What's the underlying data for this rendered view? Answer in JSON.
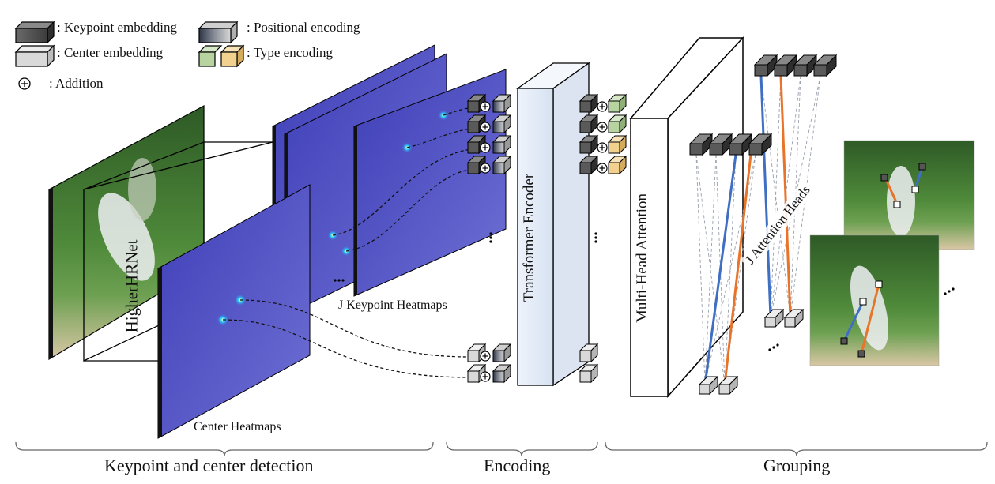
{
  "legend": {
    "keypoint_embedding": ": Keypoint embedding",
    "positional_encoding": ": Positional encoding",
    "center_embedding": ": Center embedding",
    "type_encoding": ": Type encoding",
    "addition": ": Addition"
  },
  "labels": {
    "backbone": "HigherHRNet",
    "keypoint_heatmaps": "J Keypoint Heatmaps",
    "center_heatmaps": "Center Heatmaps",
    "transformer_encoder": "Transformer Encoder",
    "multi_head_attention": "Multi-Head Attention",
    "attention_heads": "J Attention Heads",
    "ellipsis": "..."
  },
  "sections": {
    "detection": "Keypoint and center detection",
    "encoding": "Encoding",
    "grouping": "Grouping"
  },
  "colors": {
    "keypoint_embedding": "#5a5a5a",
    "center_embedding": "#d9d9d9",
    "type_encoding_a": "#b7d3a0",
    "type_encoding_b": "#f2d18f",
    "heatmap": "#4b4fc2",
    "attention_blue": "#3f6fc2",
    "attention_orange": "#e8742a"
  }
}
